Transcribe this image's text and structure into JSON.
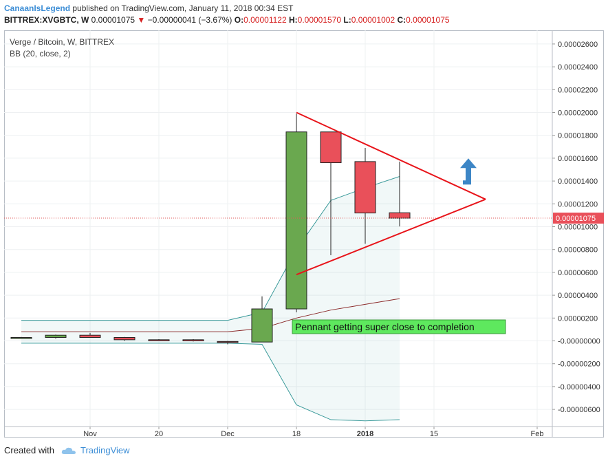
{
  "header": {
    "author": "CanaanIsLegend",
    "published": "published on TradingView.com, January 11, 2018 00:34 EST"
  },
  "ticker": {
    "symbol": "BITTREX:XVGBTC, W",
    "price": "0.00001075",
    "change": "−0.00000041 (−3.67%)",
    "o_label": "O:",
    "o": "0.00001122",
    "h_label": "H:",
    "h": "0.00001570",
    "l_label": "L:",
    "l": "0.00001002",
    "c_label": "C:",
    "c": "0.00001075"
  },
  "chart_title": "Verge / Bitcoin, W, BITTREX",
  "indicator": "BB (20, close, 2)",
  "annotation": "Pennant getting super close to completion",
  "last_price_label": "0.00001075",
  "footer": {
    "created": "Created with",
    "brand": "TradingView"
  },
  "colors": {
    "up": "#6aa84f",
    "down": "#e9505a",
    "bb_band": "#3a9a9a",
    "bb_basis": "#8b2a2a",
    "pennant": "#e8141a",
    "arrow": "#3d86c6",
    "annotation_bg": "#5ee85e"
  },
  "chart_data": {
    "type": "candlestick",
    "title": "Verge / Bitcoin, W, BITTREX",
    "x_ticks": [
      "Nov",
      "20",
      "Dec",
      "18",
      "2018",
      "15",
      "Feb"
    ],
    "y_ticks": [
      "0.00002600",
      "0.00002400",
      "0.00002200",
      "0.00002000",
      "0.00001800",
      "0.00001600",
      "0.00001400",
      "0.00001200",
      "0.00001000",
      "0.00000800",
      "0.00000600",
      "0.00000400",
      "0.00000200",
      "-0.00000000",
      "-0.00000200",
      "-0.00000400",
      "-0.00000600"
    ],
    "ylim": [
      -7.5e-06,
      2.72e-05
    ],
    "last_price": 1.075e-05,
    "candles": [
      {
        "o": 3e-07,
        "h": 3.5e-07,
        "l": 2.5e-07,
        "c": 3e-07
      },
      {
        "o": 3e-07,
        "h": 5.5e-07,
        "l": 2e-07,
        "c": 5e-07
      },
      {
        "o": 5e-07,
        "h": 7e-07,
        "l": 3e-07,
        "c": 3e-07
      },
      {
        "o": 3e-07,
        "h": 3.5e-07,
        "l": 0.0,
        "c": 1e-07
      },
      {
        "o": 1e-07,
        "h": 1.5e-07,
        "l": 5e-08,
        "c": 8e-08
      },
      {
        "o": 1e-07,
        "h": 1.5e-07,
        "l": -5e-08,
        "c": 0.0
      },
      {
        "o": -5e-08,
        "h": 0.0,
        "l": -3e-07,
        "c": -1.2e-07
      },
      {
        "o": -1e-07,
        "h": 3.9e-06,
        "l": -1e-07,
        "c": 2.8e-06
      },
      {
        "o": 2.8e-06,
        "h": 1.99e-05,
        "l": 2.5e-06,
        "c": 1.83e-05
      },
      {
        "o": 1.83e-05,
        "h": 1.83e-05,
        "l": 7.5e-06,
        "c": 1.56e-05
      },
      {
        "o": 1.57e-05,
        "h": 1.69e-05,
        "l": 8.5e-06,
        "c": 1.12e-05
      },
      {
        "o": 1.122e-05,
        "h": 1.57e-05,
        "l": 1.002e-05,
        "c": 1.075e-05
      }
    ],
    "bb_upper": [
      1.8e-06,
      1.8e-06,
      1.8e-06,
      1.8e-06,
      1.8e-06,
      1.8e-06,
      1.8e-06,
      2.5e-06,
      8e-06,
      1.23e-05,
      1.34e-05,
      1.44e-05
    ],
    "bb_basis": [
      8e-07,
      8e-07,
      8e-07,
      8e-07,
      8e-07,
      8e-07,
      8e-07,
      1.1e-06,
      2e-06,
      2.7e-06,
      3.2e-06,
      3.7e-06
    ],
    "bb_lower": [
      -2e-07,
      -2e-07,
      -2e-07,
      -2e-07,
      -2e-07,
      -2e-07,
      -2e-07,
      -3e-07,
      -5.6e-06,
      -6.9e-06,
      -7e-06,
      -6.9e-06
    ],
    "pennant": {
      "upper": [
        [
          8,
          2e-05
        ],
        [
          13.5,
          1.24e-05
        ]
      ],
      "lower": [
        [
          8,
          5.8e-06
        ],
        [
          13.5,
          1.24e-05
        ]
      ]
    },
    "target_arrow": {
      "x": 13.0,
      "y": 1.55e-05
    }
  }
}
